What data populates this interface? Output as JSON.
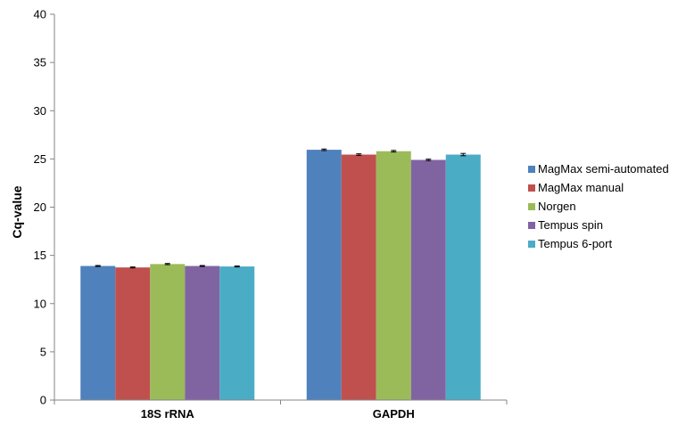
{
  "chart_data": {
    "type": "bar",
    "categories": [
      "18S rRNA",
      "GAPDH"
    ],
    "series": [
      {
        "name": "MagMax semi-automated",
        "values": [
          13.9,
          25.95
        ],
        "errors": [
          0.05,
          0.08
        ],
        "color": "#4F81BD"
      },
      {
        "name": "MagMax manual",
        "values": [
          13.75,
          25.45
        ],
        "errors": [
          0.05,
          0.08
        ],
        "color": "#C0504D"
      },
      {
        "name": "Norgen",
        "values": [
          14.1,
          25.8
        ],
        "errors": [
          0.06,
          0.08
        ],
        "color": "#9BBB59"
      },
      {
        "name": "Tempus spin",
        "values": [
          13.9,
          24.9
        ],
        "errors": [
          0.05,
          0.08
        ],
        "color": "#8064A2"
      },
      {
        "name": "Tempus 6-port",
        "values": [
          13.85,
          25.45
        ],
        "errors": [
          0.05,
          0.12
        ],
        "color": "#4BACC6"
      }
    ],
    "ylabel": "Cq-value",
    "xlabel": "",
    "ylim": [
      0,
      40
    ],
    "yticks": [
      0,
      5,
      10,
      15,
      20,
      25,
      30,
      35,
      40
    ],
    "grid": false,
    "legend": "right"
  }
}
